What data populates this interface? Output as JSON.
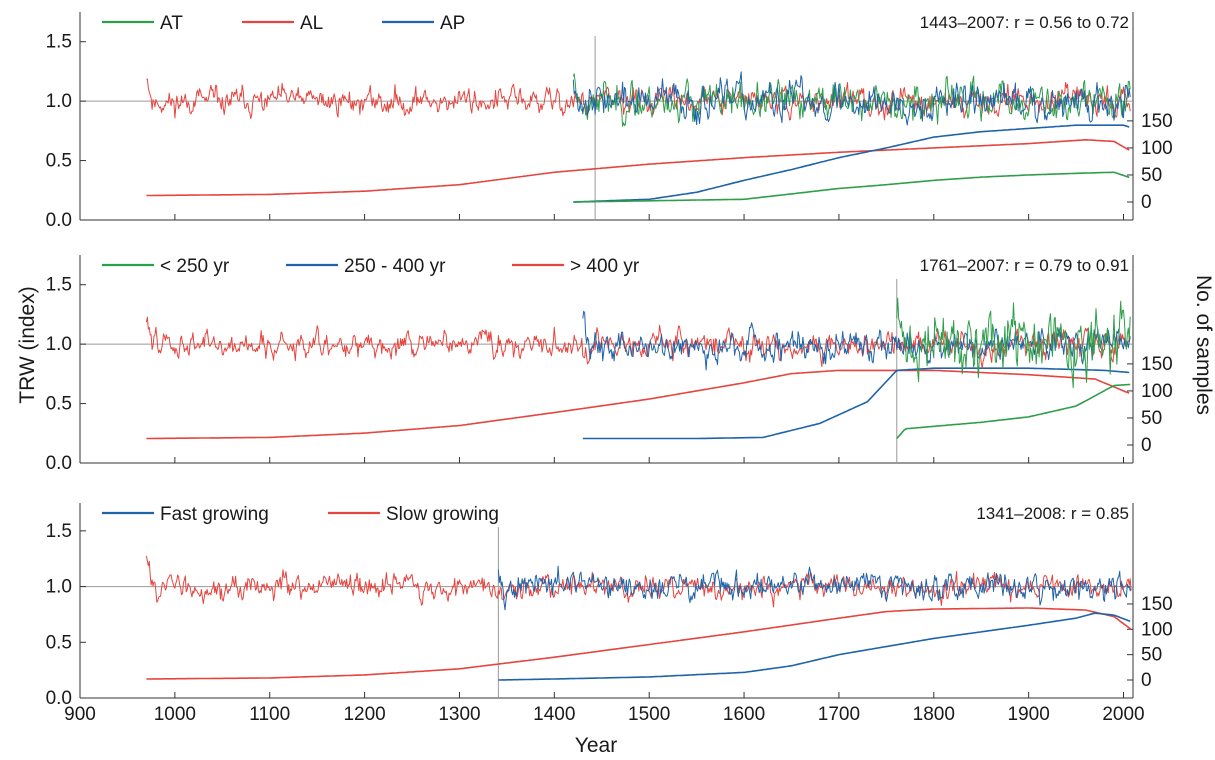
{
  "figure": {
    "ylabel_left": "TRW (index)",
    "ylabel_right": "No. of samples",
    "xlabel": "Year"
  },
  "colors": {
    "green": "#2e9e4a",
    "red": "#e5453f",
    "blue": "#1f63a8",
    "reference_line": "#9a9a9a",
    "axis": "#333333"
  },
  "chart_data": [
    {
      "type": "line",
      "panel": "top",
      "annotation": "1443–2007: r = 0.56 to 0.72",
      "xlim": [
        900,
        2010
      ],
      "ylim_left": [
        0.0,
        1.75
      ],
      "yticks_left": [
        "0.0",
        "0.5",
        "1.0",
        "1.5"
      ],
      "yticks_right": [
        "0",
        "50",
        "100",
        "150"
      ],
      "reference_y": 1.0,
      "divider_year": 1443,
      "legend": [
        {
          "label": "AT",
          "color": "#2e9e4a"
        },
        {
          "label": "AL",
          "color": "#e5453f"
        },
        {
          "label": "AP",
          "color": "#1f63a8"
        }
      ],
      "series": [
        {
          "name": "AL",
          "color": "#e5453f",
          "kind": "trw",
          "start": 970,
          "end": 2007,
          "seed": 11,
          "amp": 0.09
        },
        {
          "name": "AT",
          "color": "#2e9e4a",
          "kind": "trw",
          "start": 1420,
          "end": 2007,
          "seed": 23,
          "amp": 0.13
        },
        {
          "name": "AP",
          "color": "#1f63a8",
          "kind": "trw",
          "start": 1420,
          "end": 2007,
          "seed": 37,
          "amp": 0.12
        }
      ],
      "sample_counts": [
        {
          "name": "AL",
          "color": "#e5453f",
          "points": [
            [
              970,
              12
            ],
            [
              1100,
              14
            ],
            [
              1200,
              20
            ],
            [
              1300,
              32
            ],
            [
              1400,
              55
            ],
            [
              1500,
              70
            ],
            [
              1600,
              82
            ],
            [
              1700,
              92
            ],
            [
              1800,
              100
            ],
            [
              1900,
              108
            ],
            [
              1960,
              115
            ],
            [
              1990,
              112
            ],
            [
              2007,
              95
            ]
          ]
        },
        {
          "name": "AP",
          "color": "#1f63a8",
          "points": [
            [
              1420,
              0
            ],
            [
              1500,
              5
            ],
            [
              1550,
              18
            ],
            [
              1600,
              40
            ],
            [
              1650,
              60
            ],
            [
              1700,
              82
            ],
            [
              1750,
              100
            ],
            [
              1800,
              120
            ],
            [
              1850,
              130
            ],
            [
              1900,
              136
            ],
            [
              1950,
              142
            ],
            [
              2000,
              142
            ],
            [
              2007,
              138
            ]
          ]
        },
        {
          "name": "AT",
          "color": "#2e9e4a",
          "points": [
            [
              1420,
              0
            ],
            [
              1600,
              5
            ],
            [
              1650,
              15
            ],
            [
              1700,
              25
            ],
            [
              1750,
              32
            ],
            [
              1800,
              40
            ],
            [
              1850,
              46
            ],
            [
              1900,
              50
            ],
            [
              1950,
              53
            ],
            [
              1990,
              55
            ],
            [
              2007,
              45
            ]
          ]
        }
      ]
    },
    {
      "type": "line",
      "panel": "middle",
      "annotation": "1761–2007: r = 0.79 to 0.91",
      "xlim": [
        900,
        2010
      ],
      "ylim_left": [
        0.0,
        1.75
      ],
      "yticks_left": [
        "0.0",
        "0.5",
        "1.0",
        "1.5"
      ],
      "yticks_right": [
        "0",
        "50",
        "100",
        "150"
      ],
      "reference_y": 1.0,
      "divider_year": 1761,
      "legend": [
        {
          "label": "< 250 yr",
          "color": "#2e9e4a"
        },
        {
          "label": "250 - 400 yr",
          "color": "#1f63a8"
        },
        {
          "label": "> 400 yr",
          "color": "#e5453f"
        }
      ],
      "series": [
        {
          "name": "> 400 yr",
          "color": "#e5453f",
          "kind": "trw",
          "start": 970,
          "end": 2007,
          "seed": 47,
          "amp": 0.09
        },
        {
          "name": "250 - 400 yr",
          "color": "#1f63a8",
          "kind": "trw",
          "start": 1430,
          "end": 2007,
          "seed": 59,
          "amp": 0.11
        },
        {
          "name": "< 250 yr",
          "color": "#2e9e4a",
          "kind": "trw",
          "start": 1761,
          "end": 2007,
          "seed": 71,
          "amp": 0.22
        }
      ],
      "sample_counts": [
        {
          "name": "> 400 yr",
          "color": "#e5453f",
          "points": [
            [
              970,
              12
            ],
            [
              1100,
              14
            ],
            [
              1200,
              22
            ],
            [
              1300,
              36
            ],
            [
              1400,
              60
            ],
            [
              1500,
              85
            ],
            [
              1600,
              115
            ],
            [
              1650,
              132
            ],
            [
              1700,
              138
            ],
            [
              1800,
              138
            ],
            [
              1900,
              130
            ],
            [
              1970,
              122
            ],
            [
              2007,
              95
            ]
          ]
        },
        {
          "name": "250 - 400 yr",
          "color": "#1f63a8",
          "points": [
            [
              1430,
              12
            ],
            [
              1550,
              12
            ],
            [
              1620,
              14
            ],
            [
              1680,
              40
            ],
            [
              1730,
              80
            ],
            [
              1761,
              138
            ],
            [
              1800,
              142
            ],
            [
              1900,
              142
            ],
            [
              1980,
              138
            ],
            [
              2007,
              134
            ]
          ]
        },
        {
          "name": "< 250 yr",
          "color": "#2e9e4a",
          "points": [
            [
              1761,
              12
            ],
            [
              1770,
              30
            ],
            [
              1850,
              42
            ],
            [
              1900,
              52
            ],
            [
              1950,
              72
            ],
            [
              1990,
              110
            ],
            [
              2007,
              112
            ]
          ]
        }
      ]
    },
    {
      "type": "line",
      "panel": "bottom",
      "annotation": "1341–2008: r = 0.85",
      "xlim": [
        900,
        2010
      ],
      "ylim_left": [
        0.0,
        1.75
      ],
      "yticks_left": [
        "0.0",
        "0.5",
        "1.0",
        "1.5"
      ],
      "yticks_right": [
        "0",
        "50",
        "100",
        "150"
      ],
      "xticks": [
        "900",
        "1000",
        "1100",
        "1200",
        "1300",
        "1400",
        "1500",
        "1600",
        "1700",
        "1800",
        "1900",
        "2000"
      ],
      "reference_y": 1.0,
      "divider_year": 1341,
      "legend": [
        {
          "label": "Fast growing",
          "color": "#1f63a8"
        },
        {
          "label": "Slow growing",
          "color": "#e5453f"
        }
      ],
      "series": [
        {
          "name": "Slow growing",
          "color": "#e5453f",
          "kind": "trw",
          "start": 970,
          "end": 2008,
          "seed": 83,
          "amp": 0.09
        },
        {
          "name": "Fast growing",
          "color": "#1f63a8",
          "kind": "trw",
          "start": 1341,
          "end": 2008,
          "seed": 97,
          "amp": 0.1
        }
      ],
      "sample_counts": [
        {
          "name": "Slow growing",
          "color": "#e5453f",
          "points": [
            [
              970,
              2
            ],
            [
              1100,
              4
            ],
            [
              1200,
              10
            ],
            [
              1300,
              22
            ],
            [
              1400,
              45
            ],
            [
              1500,
              70
            ],
            [
              1600,
              95
            ],
            [
              1700,
              122
            ],
            [
              1750,
              135
            ],
            [
              1800,
              140
            ],
            [
              1900,
              142
            ],
            [
              1960,
              138
            ],
            [
              1990,
              125
            ],
            [
              2008,
              100
            ]
          ]
        },
        {
          "name": "Fast growing",
          "color": "#1f63a8",
          "points": [
            [
              1341,
              0
            ],
            [
              1400,
              2
            ],
            [
              1500,
              6
            ],
            [
              1600,
              15
            ],
            [
              1650,
              28
            ],
            [
              1700,
              50
            ],
            [
              1800,
              82
            ],
            [
              1850,
              95
            ],
            [
              1900,
              108
            ],
            [
              1950,
              122
            ],
            [
              1970,
              132
            ],
            [
              1990,
              128
            ],
            [
              2008,
              115
            ]
          ]
        }
      ]
    }
  ]
}
